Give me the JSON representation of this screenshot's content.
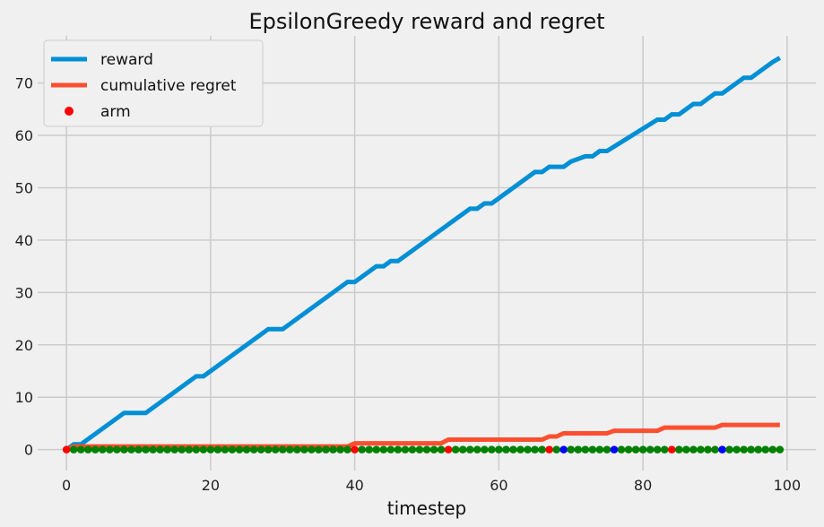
{
  "chart_data": {
    "type": "line",
    "title": "EpsilonGreedy reward and regret",
    "xlabel": "timestep",
    "ylabel": "",
    "xlim": [
      -4,
      104
    ],
    "ylim": [
      -4,
      79
    ],
    "xticks": [
      0,
      20,
      40,
      60,
      80,
      100
    ],
    "yticks": [
      0,
      10,
      20,
      30,
      40,
      50,
      60,
      70
    ],
    "xtick_labels": [
      "0",
      "20",
      "40",
      "60",
      "80",
      "100"
    ],
    "ytick_labels": [
      "0",
      "10",
      "20",
      "30",
      "40",
      "50",
      "60",
      "70"
    ],
    "grid": true,
    "legend_position": "top-left",
    "series": [
      {
        "name": "reward",
        "kind": "line",
        "color": "#008fd5",
        "x": [
          0,
          1,
          2,
          8,
          9,
          11,
          18,
          19,
          28,
          29,
          30,
          39,
          40,
          43,
          44,
          45,
          46,
          56,
          57,
          58,
          59,
          61,
          62,
          65,
          66,
          67,
          68,
          69,
          70,
          72,
          73,
          74,
          75,
          82,
          83,
          84,
          85,
          86,
          87,
          88,
          89,
          90,
          91,
          93,
          94,
          95,
          96,
          98,
          99
        ],
        "values": [
          0,
          1,
          1,
          7,
          7,
          7,
          14,
          14,
          23,
          23,
          23,
          32,
          32,
          35,
          35,
          36,
          36,
          46,
          46,
          47,
          47,
          49,
          50,
          53,
          53,
          54,
          54,
          54,
          55,
          56,
          56,
          57,
          57,
          63,
          63,
          64,
          64,
          65,
          66,
          66,
          67,
          68,
          68,
          70,
          71,
          71,
          72,
          74,
          74.8
        ]
      },
      {
        "name": "cumulative regret",
        "kind": "line",
        "color": "#fc4f30",
        "x": [
          0,
          1,
          39,
          40,
          52,
          53,
          66,
          67,
          68,
          69,
          75,
          76,
          82,
          83,
          90,
          91,
          99
        ],
        "values": [
          0,
          0.6,
          0.6,
          1.2,
          1.2,
          1.9,
          1.9,
          2.5,
          2.5,
          3.1,
          3.1,
          3.6,
          3.6,
          4.2,
          4.2,
          4.7,
          4.7
        ]
      },
      {
        "name": "arm",
        "kind": "scatter",
        "color": "#ff0000",
        "y": 0,
        "x": [
          0,
          1,
          2,
          3,
          4,
          5,
          6,
          7,
          8,
          9,
          10,
          11,
          12,
          13,
          14,
          15,
          16,
          17,
          18,
          19,
          20,
          21,
          22,
          23,
          24,
          25,
          26,
          27,
          28,
          29,
          30,
          31,
          32,
          33,
          34,
          35,
          36,
          37,
          38,
          39,
          40,
          41,
          42,
          43,
          44,
          45,
          46,
          47,
          48,
          49,
          50,
          51,
          52,
          53,
          54,
          55,
          56,
          57,
          58,
          59,
          60,
          61,
          62,
          63,
          64,
          65,
          66,
          67,
          68,
          69,
          70,
          71,
          72,
          73,
          74,
          75,
          76,
          77,
          78,
          79,
          80,
          81,
          82,
          83,
          84,
          85,
          86,
          87,
          88,
          89,
          90,
          91,
          92,
          93,
          94,
          95,
          96,
          97,
          98,
          99
        ],
        "arm_index": [
          0,
          2,
          2,
          2,
          2,
          2,
          2,
          2,
          2,
          2,
          2,
          2,
          2,
          2,
          2,
          2,
          2,
          2,
          2,
          2,
          2,
          2,
          2,
          2,
          2,
          2,
          2,
          2,
          2,
          2,
          2,
          2,
          2,
          2,
          2,
          2,
          2,
          2,
          2,
          2,
          0,
          2,
          2,
          2,
          2,
          2,
          2,
          2,
          2,
          2,
          2,
          2,
          2,
          0,
          2,
          2,
          2,
          2,
          2,
          2,
          2,
          2,
          2,
          2,
          2,
          2,
          2,
          0,
          2,
          1,
          2,
          2,
          2,
          2,
          2,
          2,
          1,
          2,
          2,
          2,
          2,
          2,
          2,
          2,
          0,
          2,
          2,
          2,
          2,
          2,
          2,
          1,
          2,
          2,
          2,
          2,
          2,
          2,
          2,
          2
        ],
        "arm_colors": [
          "#ff0000",
          "#0000ff",
          "#008000"
        ]
      }
    ]
  },
  "colors": {
    "background": "#f0f0f0",
    "grid": "#cbcbcb",
    "legend_bg": "#f0f0f0",
    "legend_border": "#cccccc"
  }
}
